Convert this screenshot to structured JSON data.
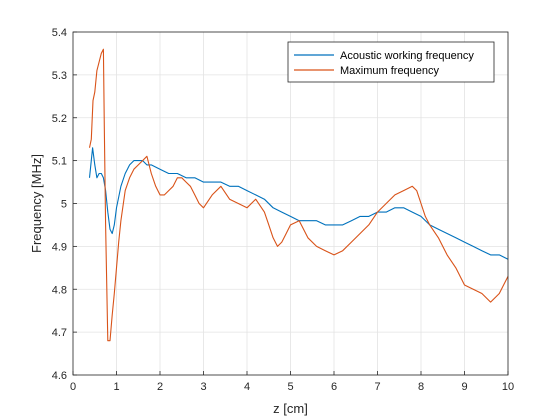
{
  "chart_data": {
    "type": "line",
    "title": "",
    "xlabel": "z [cm]",
    "ylabel": "Frequency [MHz]",
    "xlim": [
      0,
      10
    ],
    "ylim": [
      4.6,
      5.4
    ],
    "xticks": [
      0,
      1,
      2,
      3,
      4,
      5,
      6,
      7,
      8,
      9,
      10
    ],
    "yticks": [
      4.6,
      4.7,
      4.8,
      4.9,
      5.0,
      5.1,
      5.2,
      5.3,
      5.4
    ],
    "xtick_labels": [
      "0",
      "1",
      "2",
      "3",
      "4",
      "5",
      "6",
      "7",
      "8",
      "9",
      "10"
    ],
    "ytick_labels": [
      "4.6",
      "4.7",
      "4.8",
      "4.9",
      "5",
      "5.1",
      "5.2",
      "5.3",
      "5.4"
    ],
    "grid": true,
    "legend_position": "top-right",
    "series": [
      {
        "name": "Acoustic working frequency",
        "color": "#0072BD",
        "x": [
          0.38,
          0.45,
          0.5,
          0.55,
          0.6,
          0.65,
          0.7,
          0.75,
          0.8,
          0.85,
          0.9,
          0.95,
          1.0,
          1.1,
          1.2,
          1.3,
          1.4,
          1.5,
          1.6,
          1.7,
          1.8,
          2.0,
          2.2,
          2.4,
          2.6,
          2.8,
          3.0,
          3.2,
          3.4,
          3.6,
          3.8,
          4.0,
          4.2,
          4.4,
          4.6,
          4.8,
          5.0,
          5.2,
          5.4,
          5.6,
          5.8,
          6.0,
          6.2,
          6.4,
          6.6,
          6.8,
          7.0,
          7.2,
          7.4,
          7.6,
          7.8,
          8.0,
          8.2,
          8.4,
          8.6,
          8.8,
          9.0,
          9.2,
          9.4,
          9.6,
          9.8,
          10.0
        ],
        "values": [
          5.06,
          5.13,
          5.09,
          5.06,
          5.07,
          5.07,
          5.06,
          5.03,
          4.98,
          4.94,
          4.93,
          4.95,
          4.99,
          5.04,
          5.07,
          5.09,
          5.1,
          5.1,
          5.1,
          5.09,
          5.09,
          5.08,
          5.07,
          5.07,
          5.06,
          5.06,
          5.05,
          5.05,
          5.05,
          5.04,
          5.04,
          5.03,
          5.02,
          5.01,
          4.99,
          4.98,
          4.97,
          4.96,
          4.96,
          4.96,
          4.95,
          4.95,
          4.95,
          4.96,
          4.97,
          4.97,
          4.98,
          4.98,
          4.99,
          4.99,
          4.98,
          4.97,
          4.95,
          4.94,
          4.93,
          4.92,
          4.91,
          4.9,
          4.89,
          4.88,
          4.88,
          4.87
        ]
      },
      {
        "name": "Maximum frequency",
        "color": "#D95319",
        "x": [
          0.38,
          0.42,
          0.46,
          0.5,
          0.55,
          0.6,
          0.65,
          0.7,
          0.72,
          0.75,
          0.8,
          0.85,
          0.9,
          0.95,
          1.0,
          1.05,
          1.1,
          1.2,
          1.3,
          1.4,
          1.5,
          1.6,
          1.7,
          1.8,
          1.9,
          2.0,
          2.1,
          2.2,
          2.3,
          2.4,
          2.5,
          2.6,
          2.7,
          2.8,
          2.9,
          3.0,
          3.2,
          3.4,
          3.6,
          3.8,
          4.0,
          4.2,
          4.4,
          4.5,
          4.6,
          4.7,
          4.8,
          4.9,
          5.0,
          5.2,
          5.4,
          5.6,
          5.8,
          6.0,
          6.2,
          6.4,
          6.6,
          6.8,
          7.0,
          7.2,
          7.4,
          7.6,
          7.8,
          7.9,
          8.0,
          8.1,
          8.2,
          8.4,
          8.6,
          8.8,
          9.0,
          9.2,
          9.4,
          9.6,
          9.8,
          9.9,
          10.0
        ],
        "values": [
          5.13,
          5.15,
          5.24,
          5.26,
          5.31,
          5.33,
          5.35,
          5.36,
          5.18,
          4.95,
          4.68,
          4.68,
          4.74,
          4.79,
          4.85,
          4.91,
          4.96,
          5.03,
          5.06,
          5.08,
          5.09,
          5.1,
          5.11,
          5.07,
          5.04,
          5.02,
          5.02,
          5.03,
          5.04,
          5.06,
          5.06,
          5.05,
          5.04,
          5.02,
          5.0,
          4.99,
          5.02,
          5.04,
          5.01,
          5.0,
          4.99,
          5.01,
          4.98,
          4.95,
          4.92,
          4.9,
          4.91,
          4.93,
          4.95,
          4.96,
          4.92,
          4.9,
          4.89,
          4.88,
          4.89,
          4.91,
          4.93,
          4.95,
          4.98,
          5.0,
          5.02,
          5.03,
          5.04,
          5.03,
          5.0,
          4.97,
          4.95,
          4.92,
          4.88,
          4.85,
          4.81,
          4.8,
          4.79,
          4.77,
          4.79,
          4.81,
          4.83
        ]
      }
    ]
  }
}
